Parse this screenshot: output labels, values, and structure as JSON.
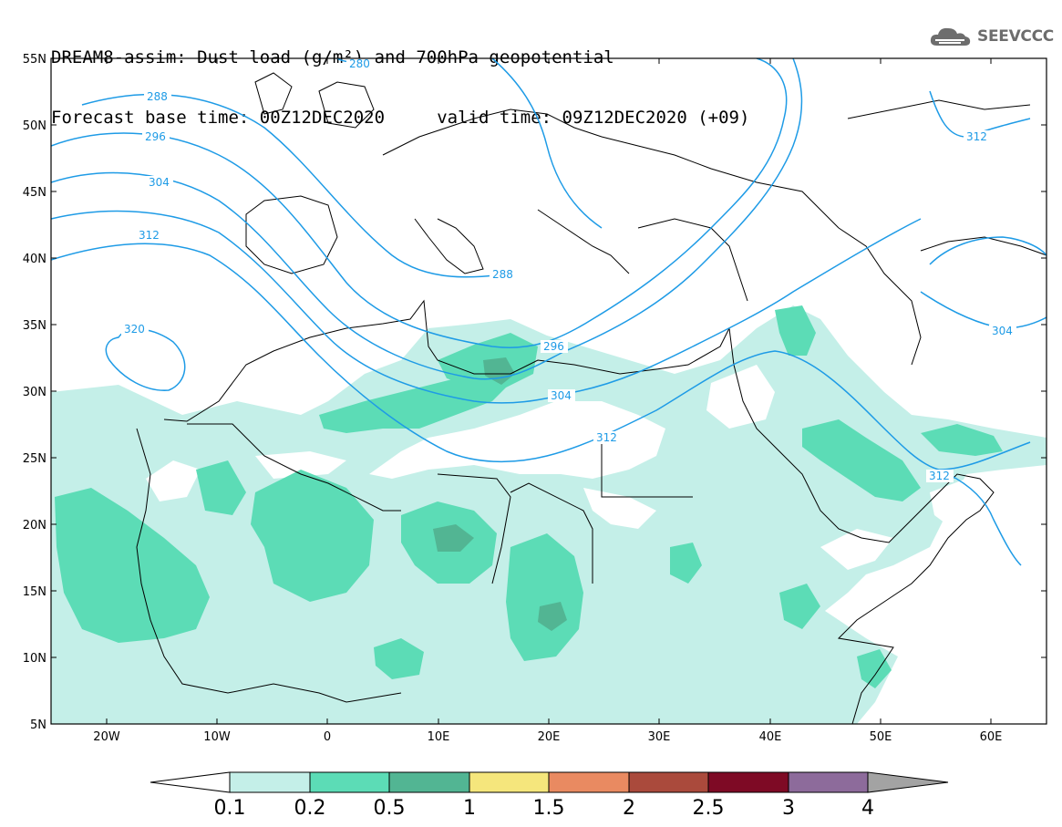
{
  "header": {
    "line1": "DREAM8-assim: Dust load (g/m²) and 700hPa geopotential",
    "line2": "Forecast base time: 00Z12DEC2020     valid time: 09Z12DEC2020 (+09)"
  },
  "logo": {
    "text": "SEEVCCC",
    "icon": "cloud-logo-icon"
  },
  "map": {
    "lon_range": [
      -25,
      65
    ],
    "lat_range": [
      5,
      55
    ],
    "lat_ticks": [
      "5N",
      "10N",
      "15N",
      "20N",
      "25N",
      "30N",
      "35N",
      "40N",
      "45N",
      "50N",
      "55N"
    ],
    "lon_ticks": [
      "20W",
      "10W",
      "0",
      "10E",
      "20E",
      "30E",
      "40E",
      "50E",
      "60E"
    ],
    "contour_labels": [
      "280",
      "288",
      "296",
      "304",
      "312",
      "320",
      "288",
      "296",
      "304",
      "312",
      "312",
      "304",
      "312"
    ],
    "colors": {
      "contour": "#1e9be6",
      "coast": "#000000"
    }
  },
  "colorbar": {
    "labels": [
      "0.1",
      "0.2",
      "0.5",
      "1",
      "1.5",
      "2",
      "2.5",
      "3",
      "4"
    ],
    "colors": [
      "#c4efe8",
      "#5cdcb6",
      "#52b593",
      "#f5e67c",
      "#e98a61",
      "#aa4a3c",
      "#7e0a25",
      "#8d6b9b",
      "#a3a3a3"
    ]
  }
}
